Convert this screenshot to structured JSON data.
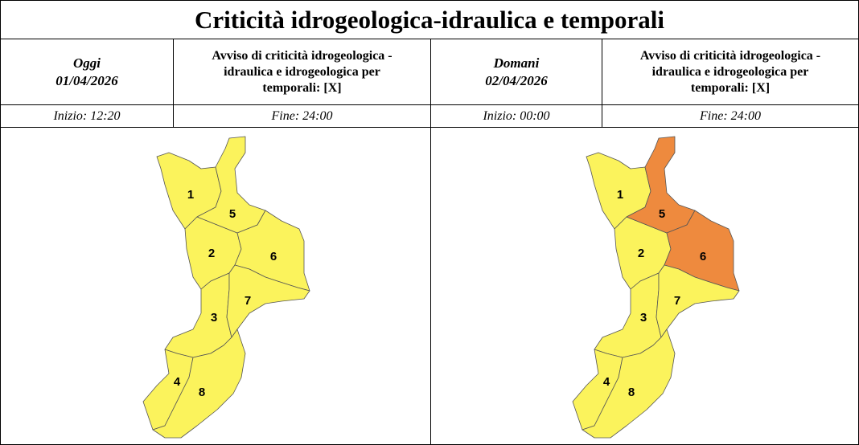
{
  "title": "Criticità idrogeologica-idraulica e temporali",
  "columns": [
    {
      "day": "Oggi",
      "date": "01/04/2026",
      "notice": "Avviso di criticità idrogeologica - idraulica e idrogeologica per temporali: [X]",
      "start": "Inizio: 12:20",
      "end": "Fine: 24:00",
      "zones": [
        {
          "label": "1",
          "color": "#fbf35c"
        },
        {
          "label": "2",
          "color": "#fbf35c"
        },
        {
          "label": "3",
          "color": "#fbf35c"
        },
        {
          "label": "4",
          "color": "#fbf35c"
        },
        {
          "label": "5",
          "color": "#fbf35c"
        },
        {
          "label": "6",
          "color": "#fbf35c"
        },
        {
          "label": "7",
          "color": "#fbf35c"
        },
        {
          "label": "8",
          "color": "#fbf35c"
        }
      ]
    },
    {
      "day": "Domani",
      "date": "02/04/2026",
      "notice": "Avviso di criticità idrogeologica - idraulica e idrogeologica per temporali: [X]",
      "start": "Inizio: 00:00",
      "end": "Fine: 24:00",
      "zones": [
        {
          "label": "1",
          "color": "#fbf35c"
        },
        {
          "label": "2",
          "color": "#fbf35c"
        },
        {
          "label": "3",
          "color": "#fbf35c"
        },
        {
          "label": "4",
          "color": "#fbf35c"
        },
        {
          "label": "5",
          "color": "#ee8a3e"
        },
        {
          "label": "6",
          "color": "#ee8a3e"
        },
        {
          "label": "7",
          "color": "#fbf35c"
        },
        {
          "label": "8",
          "color": "#fbf35c"
        }
      ]
    }
  ]
}
